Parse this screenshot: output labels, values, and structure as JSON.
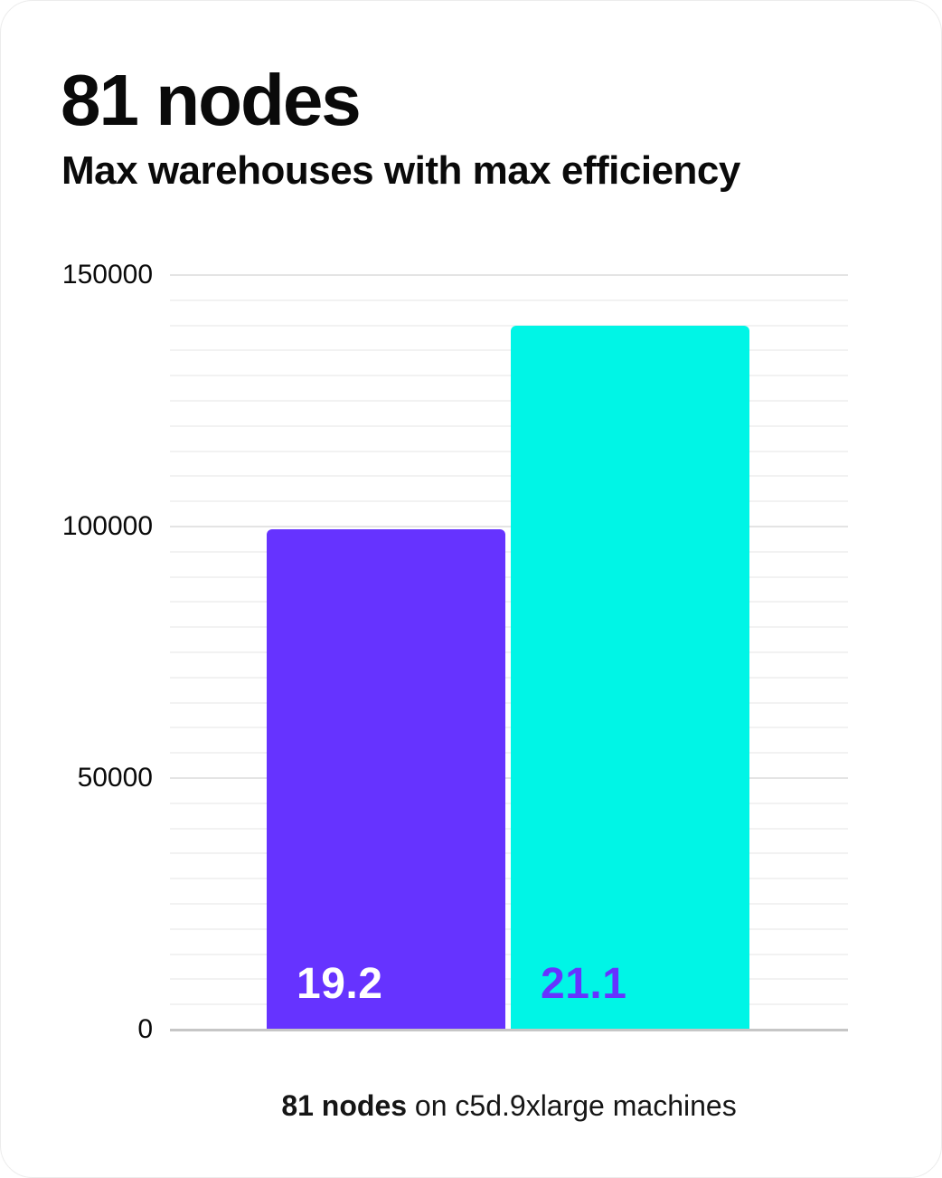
{
  "header": {
    "title": "81 nodes",
    "subtitle": "Max warehouses with max efficiency"
  },
  "footer": {
    "caption_bold": "81 nodes",
    "caption_rest": " on c5d.9xlarge machines",
    "caption_full": "81 nodes on c5d.9xlarge machines"
  },
  "colors": {
    "bars": [
      "#6633FF",
      "#00F5E6"
    ],
    "bar_label_text": [
      "#FFFFFF",
      "#6633FF"
    ],
    "grid_minor": "#F2F2F2",
    "grid_major": "#E4E4E4",
    "axis_line": "#C6C6C6",
    "text": "#0A0A0A"
  },
  "chart_data": {
    "type": "bar",
    "title": "81 nodes",
    "subtitle": "Max warehouses with max efficiency",
    "caption": "81 nodes on c5d.9xlarge machines",
    "categories": [
      "19.2",
      "21.1"
    ],
    "values": [
      99500,
      140000
    ],
    "bar_labels": [
      "19.2",
      "21.1"
    ],
    "bar_label_position": "inside-bottom-left",
    "xlabel": "",
    "ylabel": "",
    "ylim": [
      0,
      150000
    ],
    "yticks": [
      0,
      50000,
      100000,
      150000
    ],
    "ytick_labels": [
      "0",
      "50000",
      "100000",
      "150000"
    ],
    "minor_grid_step": 5000,
    "major_grid_step": 50000,
    "grid": true,
    "legend": false
  }
}
